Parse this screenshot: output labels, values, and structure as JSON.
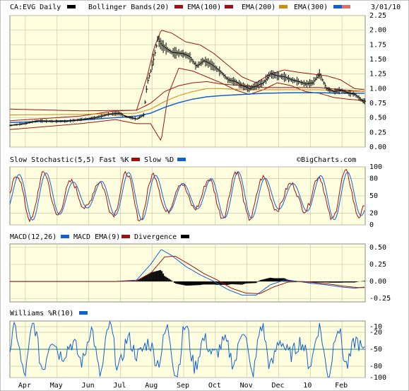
{
  "title_bar": {
    "ticker": "CA:EVG Daily",
    "legend": [
      {
        "label": "Bollinger Bands(20)",
        "color": "#000000"
      },
      {
        "label": "EMA(100)",
        "color": "#a01010"
      },
      {
        "label": "EMA(200)",
        "color": "#d08a10"
      },
      {
        "label": "EMA(300)",
        "color": "#1060d0"
      },
      {
        "label": "",
        "color": "#e07070"
      }
    ],
    "date": "3/01/10"
  },
  "watermark": "©BigCharts.com",
  "colors": {
    "panel_bg": "#ffffdf",
    "grid": "#c8c8b0",
    "price": "#000000",
    "bollinger": "#a01010",
    "ema100": "#a01010",
    "ema200": "#d08a10",
    "ema300": "#1060d0",
    "fast_k": "#a01010",
    "slow_d": "#1060d0",
    "macd": "#1060d0",
    "macd_ema": "#a01010",
    "divergence": "#000000",
    "williams": "#1060d0"
  },
  "chart_data": [
    {
      "type": "line",
      "panel": "price",
      "subtype": "ohlc",
      "ylim": [
        0,
        2.25
      ],
      "yticks": [
        "2.25",
        "2.00",
        "1.75",
        "1.50",
        "1.25",
        "1.00",
        "0.75",
        "0.50",
        "0.25",
        "0.00"
      ],
      "x_labels": [
        "Apr",
        "May",
        "Jun",
        "Jul",
        "Aug",
        "Sep",
        "Oct",
        "Nov",
        "Dec",
        "10",
        "Feb"
      ],
      "price_keypoints": [
        [
          0,
          0.37
        ],
        [
          20,
          0.4
        ],
        [
          40,
          0.45
        ],
        [
          60,
          0.44
        ],
        [
          80,
          0.44
        ],
        [
          100,
          0.47
        ],
        [
          120,
          0.5
        ],
        [
          140,
          0.56
        ],
        [
          155,
          0.58
        ],
        [
          165,
          0.52
        ],
        [
          180,
          0.48
        ],
        [
          190,
          0.55
        ],
        [
          195,
          1.1
        ],
        [
          200,
          1.3
        ],
        [
          205,
          1.55
        ],
        [
          210,
          1.85
        ],
        [
          215,
          1.75
        ],
        [
          220,
          1.7
        ],
        [
          230,
          1.62
        ],
        [
          245,
          1.6
        ],
        [
          255,
          1.55
        ],
        [
          265,
          1.38
        ],
        [
          275,
          1.48
        ],
        [
          285,
          1.42
        ],
        [
          300,
          1.28
        ],
        [
          310,
          1.15
        ],
        [
          320,
          1.12
        ],
        [
          330,
          1.05
        ],
        [
          340,
          1.0
        ],
        [
          350,
          1.05
        ],
        [
          360,
          1.1
        ],
        [
          370,
          1.25
        ],
        [
          380,
          1.22
        ],
        [
          390,
          1.2
        ],
        [
          400,
          1.15
        ],
        [
          410,
          1.12
        ],
        [
          420,
          1.08
        ],
        [
          430,
          1.1
        ],
        [
          440,
          1.25
        ],
        [
          450,
          1.0
        ],
        [
          460,
          0.95
        ],
        [
          470,
          0.97
        ],
        [
          480,
          0.93
        ],
        [
          490,
          0.9
        ],
        [
          500,
          0.8
        ],
        [
          505,
          0.78
        ]
      ],
      "bollinger_upper": [
        [
          0,
          0.45
        ],
        [
          100,
          0.53
        ],
        [
          150,
          0.62
        ],
        [
          180,
          0.63
        ],
        [
          195,
          1.2
        ],
        [
          205,
          1.7
        ],
        [
          215,
          2.0
        ],
        [
          230,
          1.95
        ],
        [
          250,
          1.8
        ],
        [
          270,
          1.75
        ],
        [
          290,
          1.6
        ],
        [
          310,
          1.4
        ],
        [
          330,
          1.2
        ],
        [
          350,
          1.1
        ],
        [
          370,
          1.25
        ],
        [
          390,
          1.32
        ],
        [
          410,
          1.28
        ],
        [
          430,
          1.25
        ],
        [
          450,
          1.22
        ],
        [
          470,
          1.15
        ],
        [
          490,
          1.0
        ],
        [
          505,
          0.98
        ]
      ],
      "bollinger_lower": [
        [
          0,
          0.3
        ],
        [
          100,
          0.4
        ],
        [
          150,
          0.47
        ],
        [
          180,
          0.4
        ],
        [
          200,
          0.4
        ],
        [
          215,
          0.1
        ],
        [
          225,
          0.9
        ],
        [
          240,
          1.35
        ],
        [
          260,
          1.3
        ],
        [
          280,
          1.2
        ],
        [
          300,
          1.1
        ],
        [
          320,
          0.98
        ],
        [
          340,
          0.9
        ],
        [
          360,
          0.98
        ],
        [
          380,
          1.1
        ],
        [
          400,
          1.05
        ],
        [
          420,
          0.95
        ],
        [
          440,
          0.92
        ],
        [
          460,
          0.85
        ],
        [
          480,
          0.82
        ],
        [
          500,
          0.8
        ],
        [
          505,
          0.74
        ]
      ],
      "ema100": [
        [
          0,
          0.65
        ],
        [
          100,
          0.62
        ],
        [
          180,
          0.63
        ],
        [
          200,
          0.75
        ],
        [
          220,
          0.95
        ],
        [
          240,
          1.05
        ],
        [
          260,
          1.1
        ],
        [
          280,
          1.12
        ],
        [
          300,
          1.08
        ],
        [
          330,
          1.05
        ],
        [
          360,
          1.02
        ],
        [
          400,
          1.02
        ],
        [
          440,
          1.02
        ],
        [
          470,
          0.98
        ],
        [
          505,
          0.95
        ]
      ],
      "ema200": [
        [
          0,
          0.55
        ],
        [
          100,
          0.56
        ],
        [
          180,
          0.58
        ],
        [
          200,
          0.65
        ],
        [
          220,
          0.78
        ],
        [
          240,
          0.88
        ],
        [
          260,
          0.95
        ],
        [
          280,
          1.0
        ],
        [
          300,
          1.0
        ],
        [
          330,
          0.98
        ],
        [
          360,
          0.98
        ],
        [
          400,
          0.98
        ],
        [
          440,
          0.98
        ],
        [
          470,
          0.96
        ],
        [
          505,
          0.95
        ]
      ],
      "ema300": [
        [
          0,
          0.42
        ],
        [
          100,
          0.46
        ],
        [
          180,
          0.53
        ],
        [
          200,
          0.58
        ],
        [
          220,
          0.68
        ],
        [
          240,
          0.76
        ],
        [
          260,
          0.82
        ],
        [
          280,
          0.86
        ],
        [
          300,
          0.88
        ],
        [
          330,
          0.9
        ],
        [
          360,
          0.92
        ],
        [
          400,
          0.93
        ],
        [
          440,
          0.93
        ],
        [
          470,
          0.92
        ],
        [
          505,
          0.92
        ]
      ]
    },
    {
      "type": "line",
      "panel": "stochastic",
      "title": "Slow Stochastic(5,5) Fast %K",
      "legend": [
        "Slow %D"
      ],
      "ylim": [
        0,
        100
      ],
      "yticks": [
        "100",
        "80",
        "50",
        "20",
        "0"
      ],
      "series_note": "oscillating"
    },
    {
      "type": "line",
      "panel": "macd",
      "title": "MACD(12,26)",
      "legend": [
        "MACD EMA(9)",
        "Divergence"
      ],
      "ylim": [
        -0.3,
        0.55
      ],
      "yticks": [
        "0.50",
        "0.25",
        "0.00",
        "-0.25"
      ],
      "macd": [
        [
          0,
          0.0
        ],
        [
          150,
          0.0
        ],
        [
          180,
          0.02
        ],
        [
          200,
          0.25
        ],
        [
          215,
          0.47
        ],
        [
          230,
          0.38
        ],
        [
          250,
          0.22
        ],
        [
          270,
          0.1
        ],
        [
          290,
          0.0
        ],
        [
          310,
          -0.12
        ],
        [
          330,
          -0.2
        ],
        [
          350,
          -0.2
        ],
        [
          370,
          -0.05
        ],
        [
          390,
          0.02
        ],
        [
          410,
          0.0
        ],
        [
          430,
          -0.03
        ],
        [
          450,
          -0.05
        ],
        [
          470,
          -0.08
        ],
        [
          490,
          -0.1
        ],
        [
          505,
          -0.08
        ]
      ],
      "macd_ema": [
        [
          0,
          0.0
        ],
        [
          150,
          0.0
        ],
        [
          180,
          0.01
        ],
        [
          200,
          0.12
        ],
        [
          220,
          0.36
        ],
        [
          235,
          0.37
        ],
        [
          255,
          0.25
        ],
        [
          275,
          0.12
        ],
        [
          295,
          0.02
        ],
        [
          315,
          -0.1
        ],
        [
          335,
          -0.17
        ],
        [
          355,
          -0.18
        ],
        [
          375,
          -0.08
        ],
        [
          395,
          -0.01
        ],
        [
          415,
          0.0
        ],
        [
          435,
          -0.02
        ],
        [
          455,
          -0.04
        ],
        [
          475,
          -0.07
        ],
        [
          495,
          -0.09
        ],
        [
          505,
          -0.09
        ]
      ]
    },
    {
      "type": "line",
      "panel": "williams",
      "title": "Williams %R(10)",
      "ylim": [
        -100,
        0
      ],
      "yticks": [
        "-10",
        "-20",
        "-50",
        "-80",
        "-100"
      ],
      "ref_line": -50
    }
  ]
}
